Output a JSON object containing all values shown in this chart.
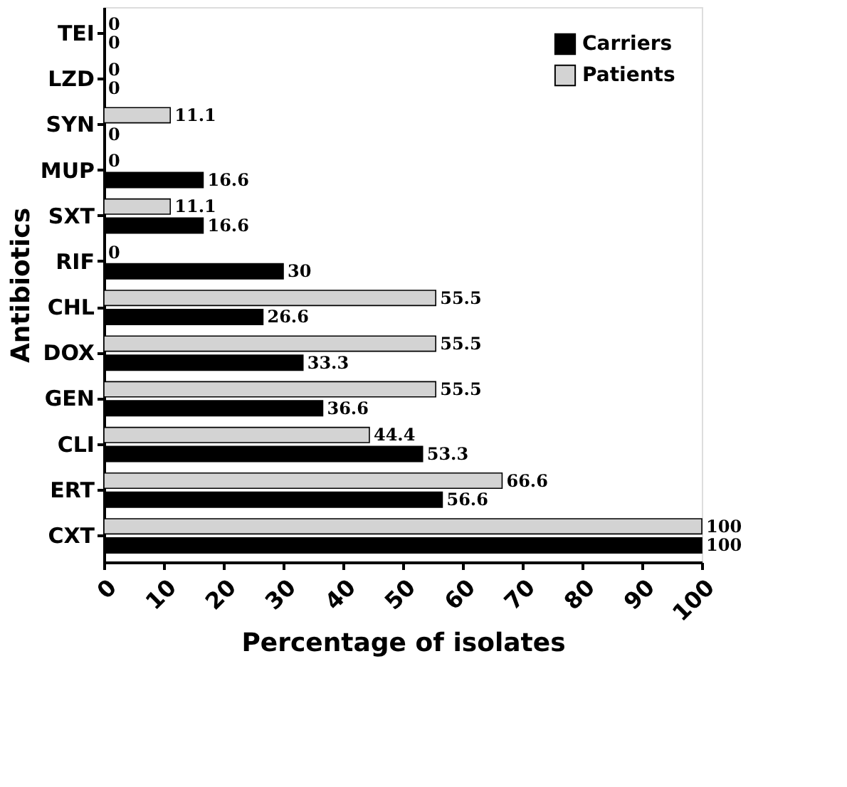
{
  "chart_data": {
    "type": "bar",
    "orientation": "horizontal",
    "xlabel": "Percentage of isolates",
    "ylabel": "Antibiotics",
    "categories": [
      "TEI",
      "LZD",
      "SYN",
      "MUP",
      "SXT",
      "RIF",
      "CHL",
      "DOX",
      "GEN",
      "CLI",
      "ERT",
      "CXT"
    ],
    "series": [
      {
        "name": "Patients",
        "color": "#d3d3d3",
        "values": [
          0,
          0,
          11.1,
          0,
          11.1,
          0,
          55.5,
          55.5,
          55.5,
          44.4,
          66.6,
          100
        ]
      },
      {
        "name": "Carriers",
        "color": "#000000",
        "values": [
          0,
          0,
          0,
          16.6,
          16.6,
          30,
          26.6,
          33.3,
          36.6,
          53.3,
          56.6,
          100
        ]
      }
    ],
    "xlim": [
      0,
      100
    ],
    "xticks": [
      0,
      10,
      20,
      30,
      40,
      50,
      60,
      70,
      80,
      90,
      100
    ],
    "data_labels": true,
    "legend": "top right",
    "grid": false
  }
}
